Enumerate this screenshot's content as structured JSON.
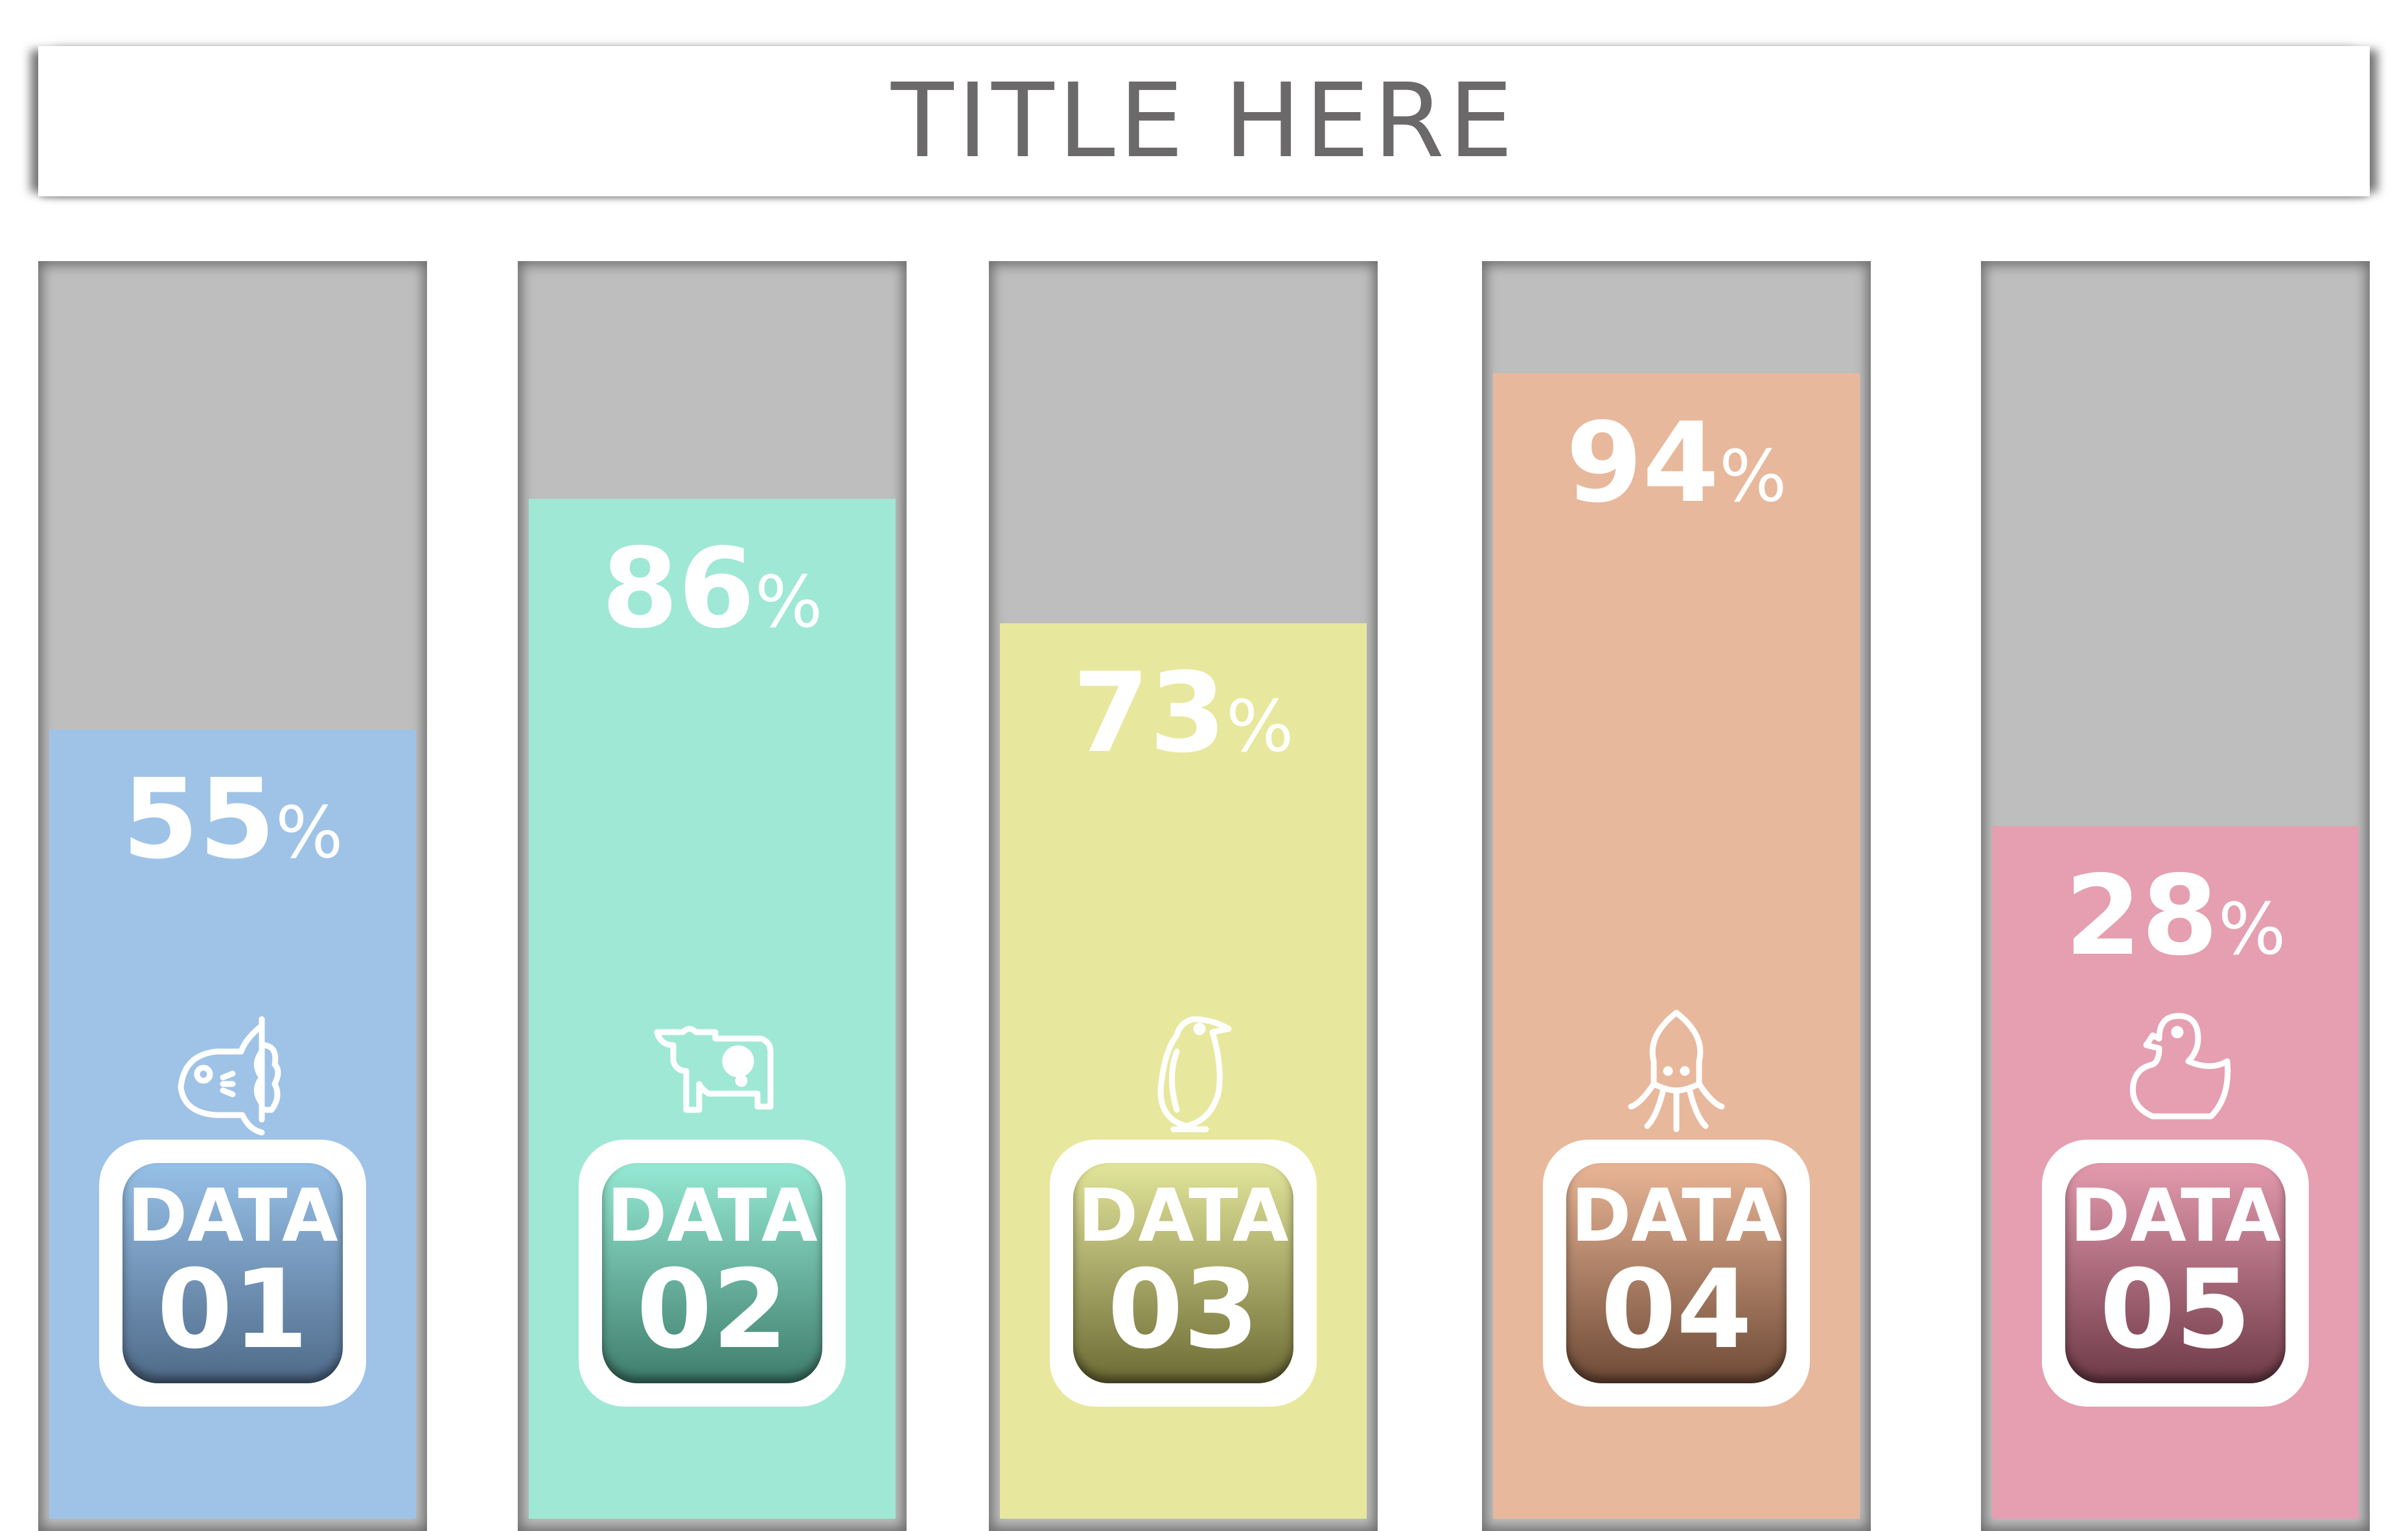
{
  "title": "TITLE HERE",
  "track_color": "#bebebe",
  "columns": [
    {
      "label": "DATA",
      "number": "01",
      "value": "55",
      "unit": "%",
      "percent": 55,
      "icon": "sunfish-icon",
      "color": "#9fc3e7",
      "badge_top": "#97c0e8",
      "badge_bottom": "#4f6a88"
    },
    {
      "label": "DATA",
      "number": "02",
      "value": "86",
      "unit": "%",
      "percent": 86,
      "icon": "cow-icon",
      "color": "#9fe8d5",
      "badge_top": "#95e9d3",
      "badge_bottom": "#3f7d6c"
    },
    {
      "label": "DATA",
      "number": "03",
      "value": "73",
      "unit": "%",
      "percent": 73,
      "icon": "penguin-icon",
      "color": "#e7e89d",
      "badge_top": "#e2e59a",
      "badge_bottom": "#6d6b35"
    },
    {
      "label": "DATA",
      "number": "04",
      "value": "94",
      "unit": "%",
      "percent": 94,
      "icon": "squid-icon",
      "color": "#e8b89c",
      "badge_top": "#e9b596",
      "badge_bottom": "#6e4a36"
    },
    {
      "label": "DATA",
      "number": "05",
      "value": "28",
      "unit": "%",
      "percent": 28,
      "icon": "duck-icon",
      "color": "#e59fb0",
      "badge_top": "#e49aae",
      "badge_bottom": "#6e3a48"
    }
  ]
}
